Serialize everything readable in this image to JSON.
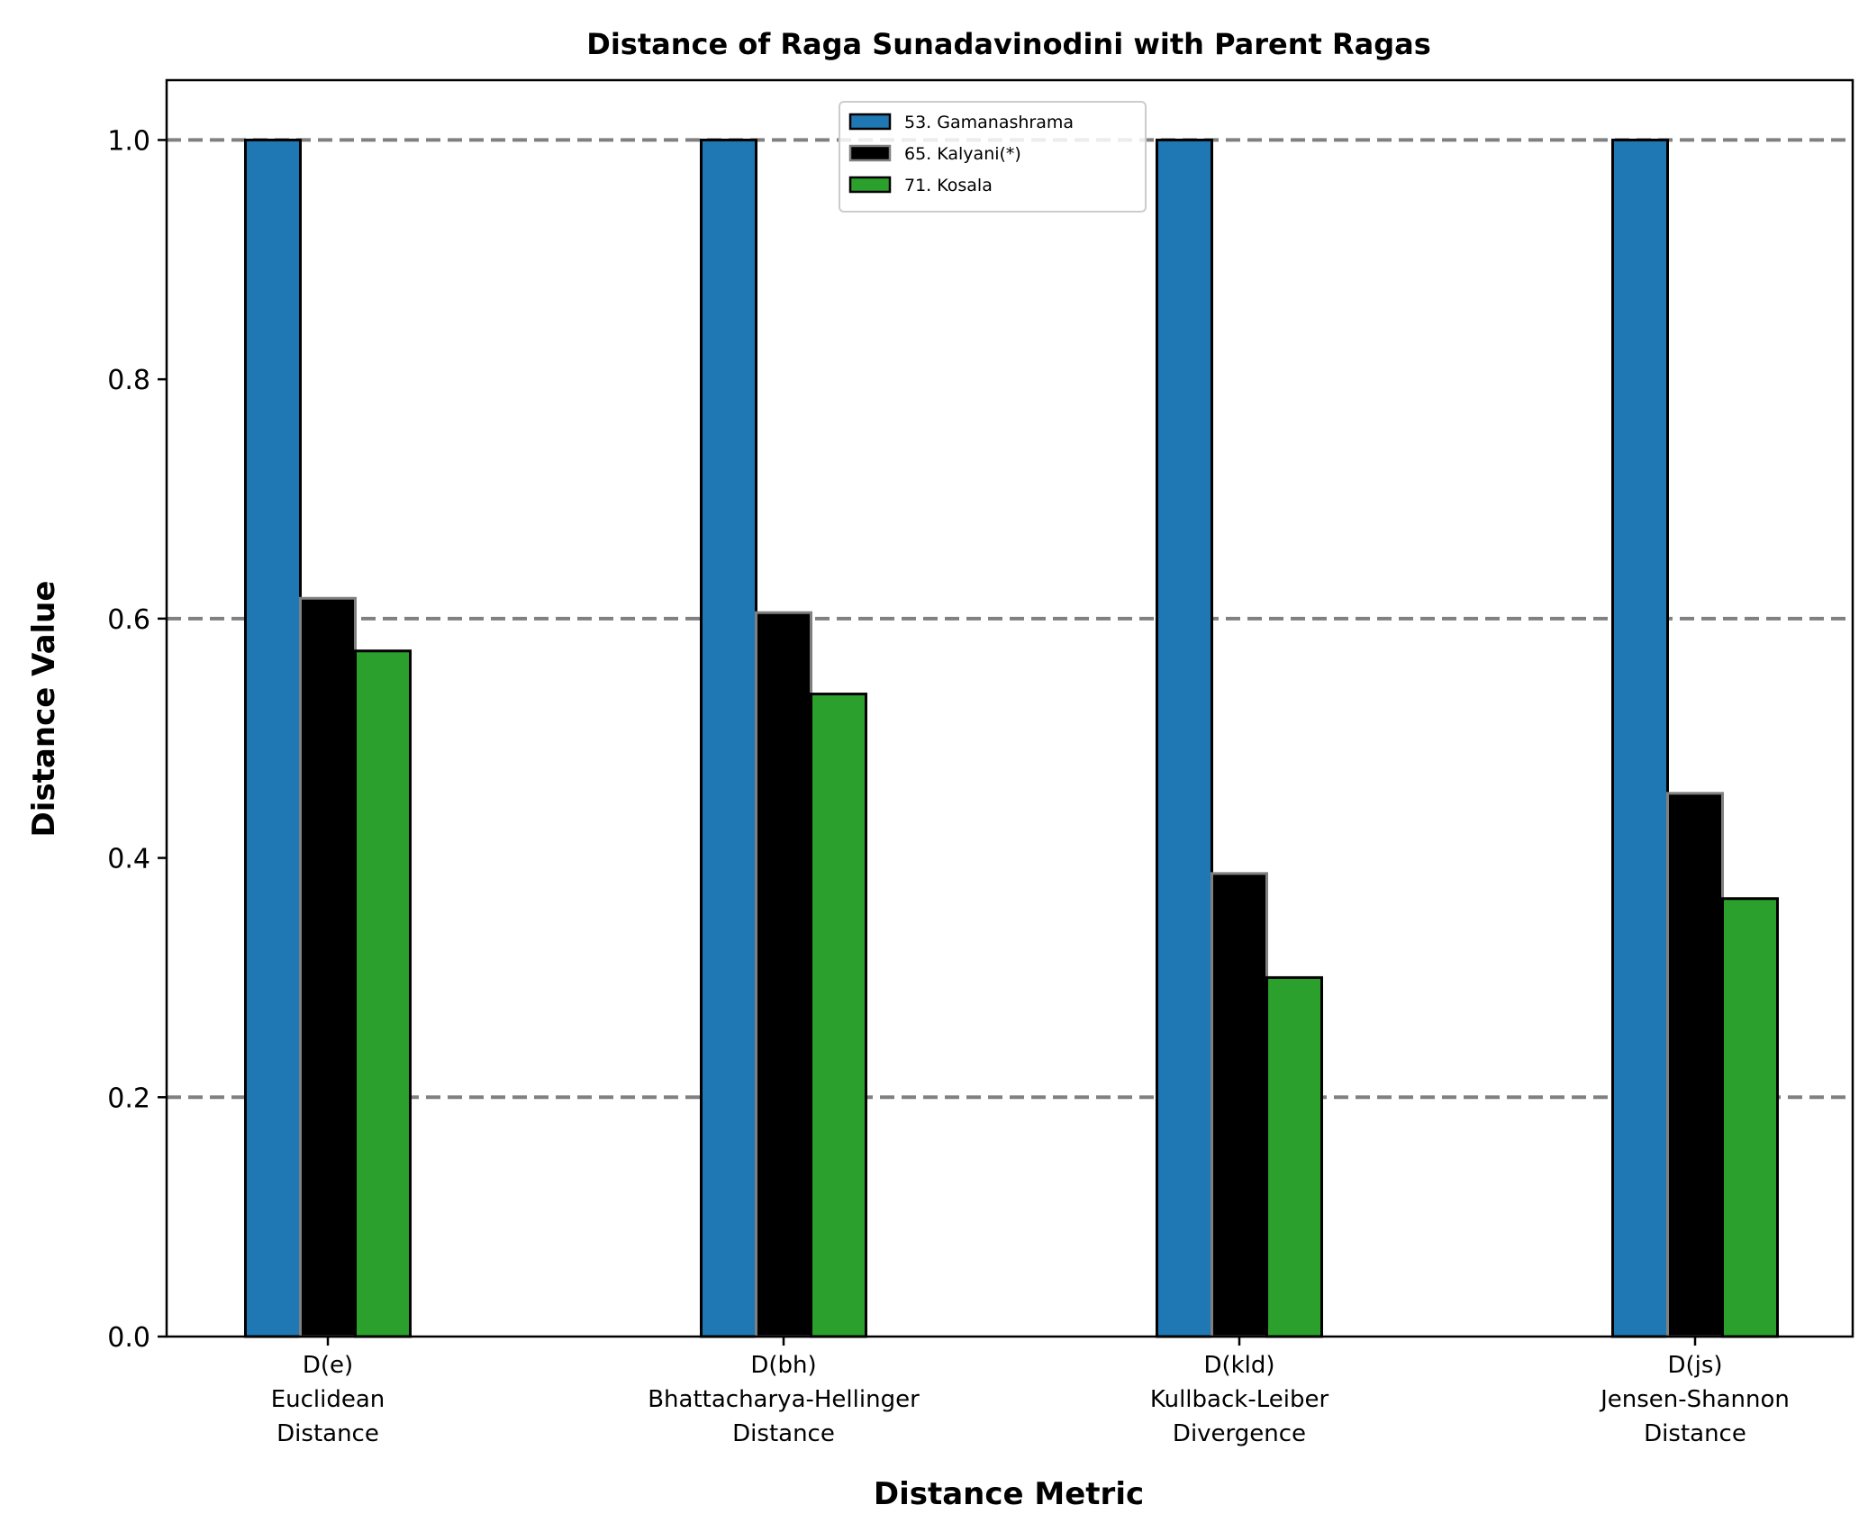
{
  "chart_data": {
    "type": "bar",
    "title": "Distance of Raga Sunadavinodini with Parent Ragas",
    "xlabel": "Distance Metric",
    "ylabel": "Distance Value",
    "ylim": [
      0,
      1.05
    ],
    "yticks": [
      "0.0",
      "0.2",
      "0.4",
      "0.6",
      "0.8",
      "1.0"
    ],
    "reference_lines": [
      0.2,
      0.6,
      1.0
    ],
    "legend_position": "top-center",
    "categories": [
      [
        "D(e)",
        "Euclidean",
        "Distance"
      ],
      [
        "D(bh)",
        "Bhattacharya-Hellinger",
        "Distance"
      ],
      [
        "D(kld)",
        "Kullback-Leiber",
        "Divergence"
      ],
      [
        "D(js)",
        "Jensen-Shannon",
        "Distance"
      ]
    ],
    "series": [
      {
        "name": "53. Gamanashrama",
        "color": "#1f77b4",
        "edge": "#000000",
        "values": [
          1.0,
          1.0,
          1.0,
          1.0
        ]
      },
      {
        "name": "65. Kalyani(*)",
        "color": "#000000",
        "edge": "#808080",
        "values": [
          0.617,
          0.605,
          0.387,
          0.454
        ]
      },
      {
        "name": "71. Kosala",
        "color": "#2ca02c",
        "edge": "#000000",
        "values": [
          0.573,
          0.537,
          0.3,
          0.366
        ]
      }
    ]
  }
}
